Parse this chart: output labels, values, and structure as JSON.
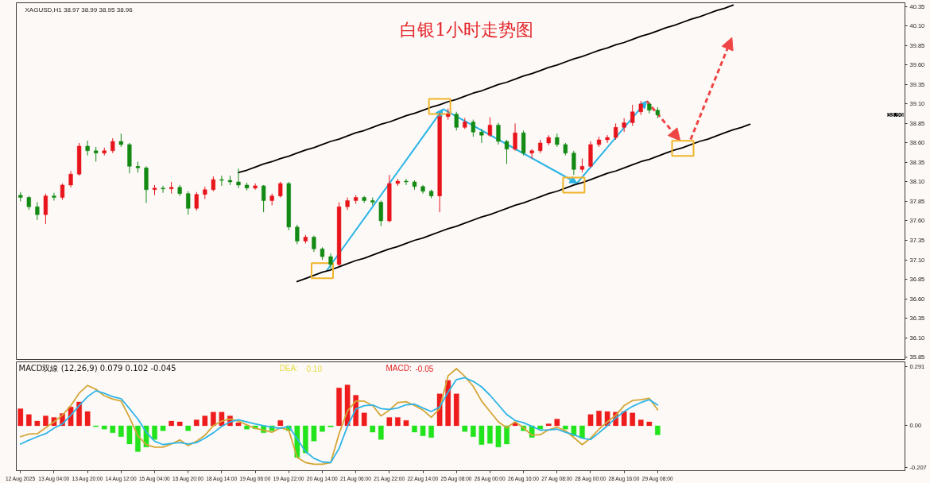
{
  "chart_data": [
    {
      "type": "candlestick",
      "title": "白银1小时走势图",
      "annotations": [
        "XAGUSD,H1 38.97 38.99 38.95 38.96",
        "38.96"
      ],
      "categories": [
        null,
        null,
        null,
        null,
        null,
        null,
        null,
        null,
        null,
        null,
        null,
        null,
        null,
        null,
        null,
        null,
        null,
        null,
        null,
        null,
        null,
        null,
        null,
        null,
        null,
        null,
        null,
        null,
        null,
        null,
        null,
        null,
        null,
        null,
        null,
        null,
        null,
        null,
        null,
        null,
        null,
        null,
        null,
        null,
        null,
        null,
        null,
        null,
        null,
        null,
        null,
        null,
        null,
        null,
        null,
        null,
        null,
        null,
        null,
        null,
        null,
        null,
        null,
        null,
        null,
        null,
        null,
        null,
        null,
        null,
        null,
        null,
        null,
        null,
        null,
        null,
        null,
        null,
        null,
        null,
        null,
        null,
        null,
        null,
        null,
        null,
        null,
        null,
        null,
        null,
        null,
        null,
        null,
        null,
        null,
        null,
        null,
        null,
        null,
        null,
        null,
        null,
        null,
        null,
        null,
        null
      ],
      "ohlc": [
        [
          37.93,
          37.97,
          37.85,
          37.9
        ],
        [
          37.9,
          37.92,
          37.74,
          37.78
        ],
        [
          37.78,
          37.84,
          37.61,
          37.68
        ],
        [
          37.68,
          37.95,
          37.56,
          37.92
        ],
        [
          37.92,
          37.96,
          37.86,
          37.9
        ],
        [
          37.9,
          38.08,
          37.87,
          38.06
        ],
        [
          38.06,
          38.24,
          38.03,
          38.2
        ],
        [
          38.2,
          38.6,
          38.18,
          38.56
        ],
        [
          38.56,
          38.63,
          38.44,
          38.5
        ],
        [
          38.5,
          38.55,
          38.36,
          38.47
        ],
        [
          38.47,
          38.54,
          38.44,
          38.5
        ],
        [
          38.5,
          38.66,
          38.47,
          38.62
        ],
        [
          38.62,
          38.72,
          38.55,
          38.58
        ],
        [
          38.58,
          38.6,
          38.21,
          38.3
        ],
        [
          38.3,
          38.36,
          38.22,
          38.28
        ],
        [
          38.28,
          38.3,
          37.83,
          38.0
        ],
        [
          38.0,
          38.06,
          37.93,
          38.02
        ],
        [
          38.02,
          38.05,
          37.96,
          38.01
        ],
        [
          38.01,
          38.1,
          37.95,
          38.03
        ],
        [
          38.03,
          38.06,
          37.92,
          37.95
        ],
        [
          37.95,
          37.98,
          37.68,
          37.76
        ],
        [
          37.76,
          37.97,
          37.73,
          37.94
        ],
        [
          37.94,
          38.04,
          37.88,
          38.0
        ],
        [
          38.0,
          38.17,
          37.98,
          38.13
        ],
        [
          38.13,
          38.18,
          38.05,
          38.12
        ],
        [
          38.12,
          38.18,
          38.06,
          38.1
        ],
        [
          38.1,
          38.27,
          38.02,
          38.06
        ],
        [
          38.06,
          38.09,
          37.99,
          38.02
        ],
        [
          38.02,
          38.08,
          38.0,
          38.05
        ],
        [
          38.05,
          38.06,
          37.71,
          37.86
        ],
        [
          37.86,
          37.95,
          37.8,
          37.92
        ],
        [
          37.92,
          38.1,
          37.9,
          38.08
        ],
        [
          38.08,
          38.1,
          37.48,
          37.52
        ],
        [
          37.52,
          37.55,
          37.3,
          37.34
        ],
        [
          37.34,
          37.42,
          37.31,
          37.39
        ],
        [
          37.39,
          37.41,
          37.2,
          37.24
        ],
        [
          37.24,
          37.26,
          37.1,
          37.14
        ],
        [
          37.14,
          37.18,
          36.98,
          37.04
        ],
        [
          37.04,
          37.84,
          37.02,
          37.78
        ],
        [
          37.78,
          37.9,
          37.74,
          37.86
        ],
        [
          37.86,
          37.93,
          37.82,
          37.9
        ],
        [
          37.9,
          37.92,
          37.83,
          37.86
        ],
        [
          37.86,
          37.9,
          37.8,
          37.84
        ],
        [
          37.84,
          37.86,
          37.53,
          37.6
        ],
        [
          37.6,
          38.19,
          37.58,
          38.08
        ],
        [
          38.08,
          38.14,
          38.05,
          38.11
        ],
        [
          38.11,
          38.14,
          38.06,
          38.1
        ],
        [
          38.1,
          38.12,
          38.0,
          38.04
        ],
        [
          38.04,
          38.06,
          37.95,
          37.98
        ],
        [
          37.98,
          38.0,
          37.89,
          37.92
        ],
        [
          37.92,
          38.98,
          37.71,
          38.94
        ],
        [
          38.94,
          39.04,
          38.9,
          38.97
        ],
        [
          38.97,
          39.0,
          38.76,
          38.8
        ],
        [
          38.8,
          38.92,
          38.78,
          38.87
        ],
        [
          38.87,
          38.9,
          38.68,
          38.74
        ],
        [
          38.74,
          38.78,
          38.6,
          38.7
        ],
        [
          38.7,
          38.93,
          38.68,
          38.83
        ],
        [
          38.83,
          38.86,
          38.58,
          38.62
        ],
        [
          38.62,
          38.64,
          38.33,
          38.52
        ],
        [
          38.52,
          38.85,
          38.5,
          38.73
        ],
        [
          38.73,
          38.76,
          38.44,
          38.47
        ],
        [
          38.47,
          38.52,
          38.4,
          38.5
        ],
        [
          38.5,
          38.64,
          38.47,
          38.6
        ],
        [
          38.6,
          38.7,
          38.57,
          38.67
        ],
        [
          38.67,
          38.72,
          38.55,
          38.58
        ],
        [
          38.58,
          38.6,
          38.44,
          38.47
        ],
        [
          38.47,
          38.5,
          38.19,
          38.26
        ],
        [
          38.26,
          38.4,
          38.22,
          38.3
        ],
        [
          38.3,
          38.62,
          38.28,
          38.58
        ],
        [
          38.58,
          38.68,
          38.55,
          38.64
        ],
        [
          38.64,
          38.7,
          38.6,
          38.67
        ],
        [
          38.67,
          38.85,
          38.64,
          38.8
        ],
        [
          38.8,
          38.92,
          38.74,
          38.86
        ],
        [
          38.86,
          39.09,
          38.82,
          39.0
        ],
        [
          39.0,
          39.14,
          38.96,
          39.1
        ],
        [
          39.1,
          39.12,
          38.98,
          39.02
        ],
        [
          39.02,
          39.06,
          38.92,
          38.96
        ],
        null,
        null,
        null,
        null,
        null,
        null,
        null,
        null,
        null,
        null,
        null,
        null,
        null,
        null,
        null,
        null,
        null,
        null,
        null,
        null,
        null,
        null,
        null,
        null,
        null,
        null,
        null,
        null,
        null
      ],
      "colors": [
        "#138a13",
        "#138a13",
        "#138a13",
        "#e8141b",
        "#138a13",
        "#e8141b",
        "#e8141b",
        "#e8141b",
        "#138a13",
        "#138a13",
        "#e8141b",
        "#e8141b",
        "#138a13",
        "#138a13",
        "#138a13",
        "#138a13",
        "#e8141b",
        "#138a13",
        "#e8141b",
        "#138a13",
        "#138a13",
        "#e8141b",
        "#e8141b",
        "#e8141b",
        "#138a13",
        "#138a13",
        "#138a13",
        "#138a13",
        "#e8141b",
        "#138a13",
        "#e8141b",
        "#e8141b",
        "#138a13",
        "#138a13",
        "#e8141b",
        "#138a13",
        "#138a13",
        "#138a13",
        "#e8141b",
        "#e8141b",
        "#e8141b",
        "#138a13",
        "#138a13",
        "#138a13",
        "#e8141b",
        "#e8141b",
        "#138a13",
        "#138a13",
        "#138a13",
        "#138a13",
        "#e8141b",
        "#e8141b",
        "#138a13",
        "#e8141b",
        "#138a13",
        "#138a13",
        "#e8141b",
        "#138a13",
        "#138a13",
        "#e8141b",
        "#138a13",
        "#e8141b",
        "#e8141b",
        "#e8141b",
        "#138a13",
        "#138a13",
        "#138a13",
        "#e8141b",
        "#e8141b",
        "#e8141b",
        "#e8141b",
        "#e8141b",
        "#e8141b",
        "#e8141b",
        "#e8141b",
        "#138a13",
        "#138a13",
        null,
        null,
        null,
        null,
        null,
        null,
        null,
        null,
        null,
        null,
        null,
        null,
        null,
        null,
        null,
        null,
        null,
        null,
        null,
        null,
        null,
        null,
        null,
        null,
        null,
        null,
        null,
        null,
        null
      ],
      "series": [
        {
          "type": "line",
          "color": "#000000",
          "values": [
            null,
            null,
            null,
            null,
            null,
            null,
            null,
            null,
            null,
            null,
            null,
            null,
            null,
            null,
            null,
            null,
            null,
            null,
            null,
            null,
            null,
            null,
            null,
            null,
            null,
            null,
            38.22,
            38.25,
            38.29,
            38.33,
            38.36,
            38.4,
            38.43,
            38.47,
            38.51,
            38.54,
            38.58,
            38.62,
            38.65,
            38.69,
            38.73,
            38.76,
            38.8,
            38.84,
            38.87,
            38.91,
            38.95,
            38.98,
            39.02,
            39.06,
            39.09,
            39.13,
            39.16,
            39.2,
            39.24,
            39.27,
            39.31,
            39.35,
            39.38,
            39.42,
            39.46,
            39.49,
            39.53,
            39.57,
            39.6,
            39.64,
            39.68,
            39.71,
            39.75,
            39.79,
            39.82,
            39.86,
            39.89,
            39.93,
            39.97,
            40.0,
            40.04,
            40.08,
            40.11,
            40.15,
            40.19,
            40.22,
            40.26,
            40.3,
            40.33,
            40.37,
            null,
            null,
            null,
            null,
            null,
            null,
            null,
            null,
            null,
            null,
            null,
            null,
            null,
            null,
            null,
            null,
            null,
            null,
            null,
            null
          ]
        },
        {
          "type": "line",
          "color": "#000000",
          "values": [
            null,
            null,
            null,
            null,
            null,
            null,
            null,
            null,
            null,
            null,
            null,
            null,
            null,
            null,
            null,
            null,
            null,
            null,
            null,
            null,
            null,
            null,
            null,
            null,
            null,
            null,
            null,
            null,
            null,
            null,
            null,
            null,
            null,
            36.82,
            36.86,
            36.9,
            36.94,
            36.97,
            37.01,
            37.05,
            37.09,
            37.12,
            37.16,
            37.2,
            37.24,
            37.27,
            37.31,
            37.35,
            37.38,
            37.42,
            37.46,
            37.5,
            37.53,
            37.57,
            37.61,
            37.65,
            37.68,
            37.72,
            37.76,
            37.8,
            37.83,
            37.87,
            37.91,
            37.95,
            37.98,
            38.02,
            38.06,
            38.09,
            38.13,
            38.17,
            38.21,
            38.24,
            38.28,
            38.32,
            38.36,
            38.39,
            38.43,
            38.47,
            38.51,
            38.54,
            38.58,
            38.62,
            38.65,
            38.69,
            38.73,
            38.77,
            38.8,
            38.84,
            null,
            null,
            null,
            null,
            null,
            null,
            null,
            null,
            null,
            null,
            null,
            null,
            null,
            null,
            null,
            null,
            null,
            null
          ]
        },
        {
          "type": "scatter",
          "color": "#f0b429",
          "marker": "square",
          "values": [
            null,
            null,
            null,
            null,
            null,
            null,
            null,
            null,
            null,
            null,
            null,
            null,
            null,
            null,
            null,
            null,
            null,
            null,
            null,
            null,
            null,
            null,
            null,
            null,
            null,
            null,
            null,
            null,
            null,
            null,
            null,
            null,
            null,
            null,
            null,
            null,
            36.96,
            null,
            null,
            null,
            null,
            null,
            null,
            null,
            null,
            null,
            null,
            null,
            null,
            null,
            39.07,
            null,
            null,
            null,
            null,
            null,
            null,
            null,
            null,
            null,
            null,
            null,
            null,
            null,
            null,
            null,
            38.06,
            null,
            null,
            null,
            null,
            null,
            null,
            null,
            null,
            null,
            null,
            null,
            null,
            38.53,
            null,
            null,
            null,
            null,
            null,
            null,
            null,
            null,
            null,
            null,
            null,
            null,
            null,
            null,
            null,
            null,
            null,
            null,
            null,
            null,
            null,
            null,
            null,
            null,
            null,
            null
          ]
        }
      ],
      "ylim": [
        35.82,
        40.4
      ],
      "yticks": [
        40.35,
        {
          "value": 40.1,
          "label": "40.10"
        },
        39.85,
        {
          "value": 39.6,
          "label": "39.60"
        },
        39.35,
        {
          "value": 39.1,
          "label": "39.10"
        },
        38.85,
        {
          "value": 38.6,
          "label": "38.60"
        },
        38.35,
        {
          "value": 38.1,
          "label": "38.10"
        },
        37.85,
        {
          "value": 37.6,
          "label": "37.60"
        },
        37.35,
        {
          "value": 37.1,
          "label": "37.10"
        },
        36.85,
        {
          "value": 36.6,
          "label": "36.60"
        },
        36.35,
        {
          "value": 36.1,
          "label": "36.10"
        },
        35.85
      ],
      "tick_labels": "y"
    },
    {
      "type": "bar",
      "stacked": true,
      "annotations": [
        "MACD双線 (12,26,9) 0.079 0.102 -0.045",
        "DEA:",
        "0.10",
        "MACD:",
        "-0.05"
      ],
      "categories": [
        "12 Aug 2025",
        null,
        null,
        null,
        "13 Aug 04:00",
        null,
        null,
        null,
        "13 Aug 20:00",
        null,
        null,
        null,
        "14 Aug 12:00",
        null,
        null,
        null,
        "15 Aug 04:00",
        null,
        null,
        null,
        "15 Aug 20:00",
        null,
        null,
        null,
        "18 Aug 14:00",
        null,
        null,
        null,
        "19 Aug 06:00",
        null,
        null,
        null,
        "19 Aug 22:00",
        null,
        null,
        null,
        "20 Aug 14:00",
        null,
        null,
        null,
        "21 Aug 06:00",
        null,
        null,
        null,
        "21 Aug 22:00",
        null,
        null,
        null,
        "22 Aug 14:00",
        null,
        null,
        null,
        "25 Aug 08:00",
        null,
        null,
        null,
        "26 Aug 00:00",
        null,
        null,
        null,
        "26 Aug 16:00",
        null,
        null,
        null,
        "27 Aug 08:00",
        null,
        null,
        null,
        "28 Aug 00:00",
        null,
        null,
        null,
        "28 Aug 16:00",
        null,
        null,
        null,
        "29 Aug 08:00",
        null,
        null,
        null,
        null,
        null,
        null,
        null,
        null,
        null,
        null,
        null,
        null,
        null,
        null,
        null,
        null,
        null,
        null,
        null,
        null,
        null,
        null,
        null,
        null,
        null,
        null,
        null,
        null,
        null
      ],
      "series": [
        {
          "type": "bar",
          "color": "#ee1c1c",
          "values": [
            0.084,
            0.055,
            0.023,
            0.048,
            0.041,
            0.06,
            0.092,
            0.117,
            0.07,
            null,
            null,
            null,
            null,
            null,
            null,
            null,
            null,
            null,
            0.023,
            0.019,
            null,
            0.029,
            0.048,
            0.067,
            0.067,
            0.048,
            0.015,
            null,
            null,
            null,
            null,
            0.026,
            null,
            null,
            null,
            null,
            null,
            null,
            0.186,
            0.201,
            0.15,
            0.063,
            null,
            null,
            0.041,
            0.041,
            0.026,
            null,
            null,
            null,
            0.157,
            0.223,
            0.157,
            null,
            null,
            null,
            null,
            null,
            null,
            0.015,
            null,
            null,
            null,
            0.009,
            0.033,
            null,
            null,
            null,
            0.055,
            0.073,
            0.07,
            0.067,
            0.07,
            0.063,
            0.029,
            0.019,
            null,
            null,
            null,
            null,
            null,
            null,
            null,
            null,
            null,
            null,
            null,
            null,
            null,
            null,
            null,
            null,
            null,
            null,
            null,
            null,
            null,
            null,
            null,
            null,
            null,
            null,
            null,
            null,
            null,
            null
          ]
        },
        {
          "type": "bar",
          "color": "#22e41c",
          "values": [
            null,
            null,
            null,
            null,
            null,
            null,
            null,
            null,
            null,
            -0.005,
            -0.017,
            -0.035,
            -0.054,
            -0.09,
            -0.127,
            -0.105,
            -0.068,
            -0.025,
            null,
            null,
            -0.025,
            null,
            null,
            null,
            null,
            null,
            null,
            -0.017,
            -0.015,
            -0.035,
            -0.025,
            null,
            -0.025,
            -0.156,
            -0.134,
            -0.076,
            -0.029,
            -0.006,
            null,
            null,
            null,
            null,
            -0.032,
            -0.068,
            null,
            null,
            null,
            -0.032,
            -0.05,
            -0.058,
            null,
            null,
            null,
            -0.029,
            -0.054,
            -0.093,
            -0.087,
            -0.105,
            -0.09,
            null,
            -0.025,
            -0.058,
            -0.017,
            null,
            null,
            -0.017,
            -0.05,
            -0.061,
            null,
            null,
            null,
            null,
            null,
            null,
            null,
            null,
            -0.045,
            null,
            null,
            null,
            null,
            null,
            null,
            null,
            null,
            null,
            null,
            null,
            null,
            null,
            null,
            null,
            null,
            null,
            null,
            null,
            null,
            null,
            null,
            null,
            null,
            null,
            null,
            null,
            null,
            null
          ]
        },
        {
          "type": "line",
          "color": "#d4a637",
          "values": [
            -0.054,
            -0.041,
            -0.039,
            -0.01,
            0.019,
            0.052,
            0.099,
            0.16,
            0.198,
            0.179,
            0.147,
            0.131,
            0.121,
            0.041,
            -0.05,
            -0.093,
            -0.105,
            -0.105,
            -0.09,
            -0.07,
            -0.098,
            -0.076,
            -0.047,
            0,
            0.023,
            0.033,
            0.023,
            0.004,
            -0.013,
            -0.022,
            -0.032,
            -0.01,
            -0.022,
            -0.156,
            -0.181,
            -0.189,
            -0.189,
            -0.181,
            -0.039,
            0.073,
            0.121,
            0.121,
            0.099,
            0.048,
            0.077,
            0.114,
            0.118,
            0.099,
            0.077,
            0.041,
            0.084,
            0.245,
            0.281,
            0.242,
            0.194,
            0.121,
            0.07,
            0.019,
            -0.01,
            0.019,
            -0.01,
            -0.047,
            -0.044,
            -0.02,
            -0.007,
            -0.025,
            -0.058,
            -0.093,
            -0.061,
            -0.017,
            0.019,
            0.051,
            0.099,
            0.124,
            0.128,
            0.135,
            0.079,
            null,
            null,
            null,
            null,
            null,
            null,
            null,
            null,
            null,
            null,
            null,
            null,
            null,
            null,
            null,
            null,
            null,
            null,
            null,
            null,
            null,
            null,
            null,
            null,
            null,
            null,
            null,
            null,
            null
          ]
        },
        {
          "type": "line",
          "color": "#2fb5e6",
          "values": [
            -0.09,
            -0.071,
            -0.054,
            -0.039,
            -0.012,
            0.009,
            0.052,
            0.099,
            0.143,
            0.172,
            0.159,
            0.143,
            0.133,
            0.084,
            0.033,
            -0.032,
            -0.076,
            -0.093,
            -0.087,
            -0.083,
            -0.09,
            -0.083,
            -0.061,
            -0.035,
            -0.003,
            0.019,
            0.029,
            0.019,
            0.009,
            0,
            -0.007,
            -0.013,
            -0.003,
            -0.064,
            -0.127,
            -0.16,
            -0.178,
            -0.181,
            -0.112,
            -0.003,
            0.082,
            0.099,
            0.102,
            0.084,
            0.08,
            0.087,
            0.103,
            0.106,
            0.087,
            0.07,
            0.092,
            0.165,
            0.227,
            0.236,
            0.218,
            0.191,
            0.15,
            0.103,
            0.055,
            0.026,
            0.015,
            -0.003,
            -0.022,
            -0.02,
            -0.017,
            -0.032,
            -0.044,
            -0.061,
            -0.068,
            -0.035,
            0,
            0.038,
            0.07,
            0.095,
            0.114,
            0.128,
            0.102,
            null,
            null,
            null,
            null,
            null,
            null,
            null,
            null,
            null,
            null,
            null,
            null,
            null,
            null,
            null,
            null,
            null,
            null,
            null,
            null,
            null,
            null,
            null,
            null,
            null,
            null,
            null,
            null,
            null
          ]
        }
      ],
      "ylim": [
        -0.221,
        0.314
      ],
      "yticks": [
        0.291,
        {
          "value": 0,
          "label": "0.00"
        },
        -0.207
      ]
    }
  ]
}
